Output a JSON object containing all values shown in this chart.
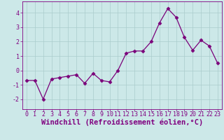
{
  "x": [
    0,
    1,
    2,
    3,
    4,
    5,
    6,
    7,
    8,
    9,
    10,
    11,
    12,
    13,
    14,
    15,
    16,
    17,
    18,
    19,
    20,
    21,
    22,
    23
  ],
  "y": [
    -0.7,
    -0.7,
    -2.0,
    -0.6,
    -0.5,
    -0.4,
    -0.3,
    -0.9,
    -0.2,
    -0.7,
    -0.8,
    0.0,
    1.2,
    1.35,
    1.35,
    2.0,
    3.3,
    4.3,
    3.7,
    2.3,
    1.4,
    2.1,
    1.7,
    0.5
  ],
  "line_color": "#7a007a",
  "marker": "D",
  "marker_size": 2.5,
  "background_color": "#cce8e8",
  "grid_color": "#aacccc",
  "xlabel": "Windchill (Refroidissement éolien,°C)",
  "xlim": [
    -0.5,
    23.5
  ],
  "ylim": [
    -2.7,
    4.8
  ],
  "yticks": [
    -2,
    -1,
    0,
    1,
    2,
    3,
    4
  ],
  "xticks": [
    0,
    1,
    2,
    3,
    4,
    5,
    6,
    7,
    8,
    9,
    10,
    11,
    12,
    13,
    14,
    15,
    16,
    17,
    18,
    19,
    20,
    21,
    22,
    23
  ],
  "label_color": "#800080",
  "tick_fontsize": 6.0,
  "xlabel_fontsize": 7.5
}
